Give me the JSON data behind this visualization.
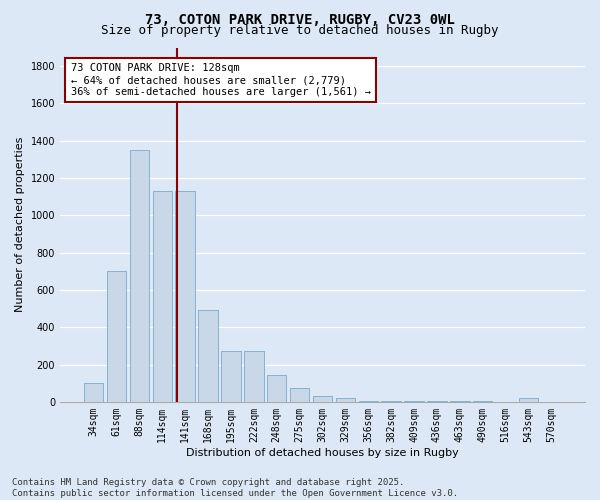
{
  "title_line1": "73, COTON PARK DRIVE, RUGBY, CV23 0WL",
  "title_line2": "Size of property relative to detached houses in Rugby",
  "xlabel": "Distribution of detached houses by size in Rugby",
  "ylabel": "Number of detached properties",
  "categories": [
    "34sqm",
    "61sqm",
    "88sqm",
    "114sqm",
    "141sqm",
    "168sqm",
    "195sqm",
    "222sqm",
    "248sqm",
    "275sqm",
    "302sqm",
    "329sqm",
    "356sqm",
    "382sqm",
    "409sqm",
    "436sqm",
    "463sqm",
    "490sqm",
    "516sqm",
    "543sqm",
    "570sqm"
  ],
  "values": [
    100,
    700,
    1350,
    1130,
    1130,
    490,
    275,
    275,
    145,
    75,
    30,
    20,
    5,
    2,
    2,
    2,
    2,
    2,
    0,
    20,
    0
  ],
  "bar_color": "#c8d8e8",
  "bar_edge_color": "#7aaac8",
  "vline_color": "#8b0000",
  "annotation_text": "73 COTON PARK DRIVE: 128sqm\n← 64% of detached houses are smaller (2,779)\n36% of semi-detached houses are larger (1,561) →",
  "annotation_box_color": "#ffffff",
  "annotation_box_edge": "#8b0000",
  "ylim": [
    0,
    1900
  ],
  "yticks": [
    0,
    200,
    400,
    600,
    800,
    1000,
    1200,
    1400,
    1600,
    1800
  ],
  "bg_color": "#dce8f5",
  "grid_color": "#ffffff",
  "footnote": "Contains HM Land Registry data © Crown copyright and database right 2025.\nContains public sector information licensed under the Open Government Licence v3.0.",
  "title_fontsize": 10,
  "subtitle_fontsize": 9,
  "axis_label_fontsize": 8,
  "tick_fontsize": 7,
  "annotation_fontsize": 7.5,
  "footnote_fontsize": 6.5
}
